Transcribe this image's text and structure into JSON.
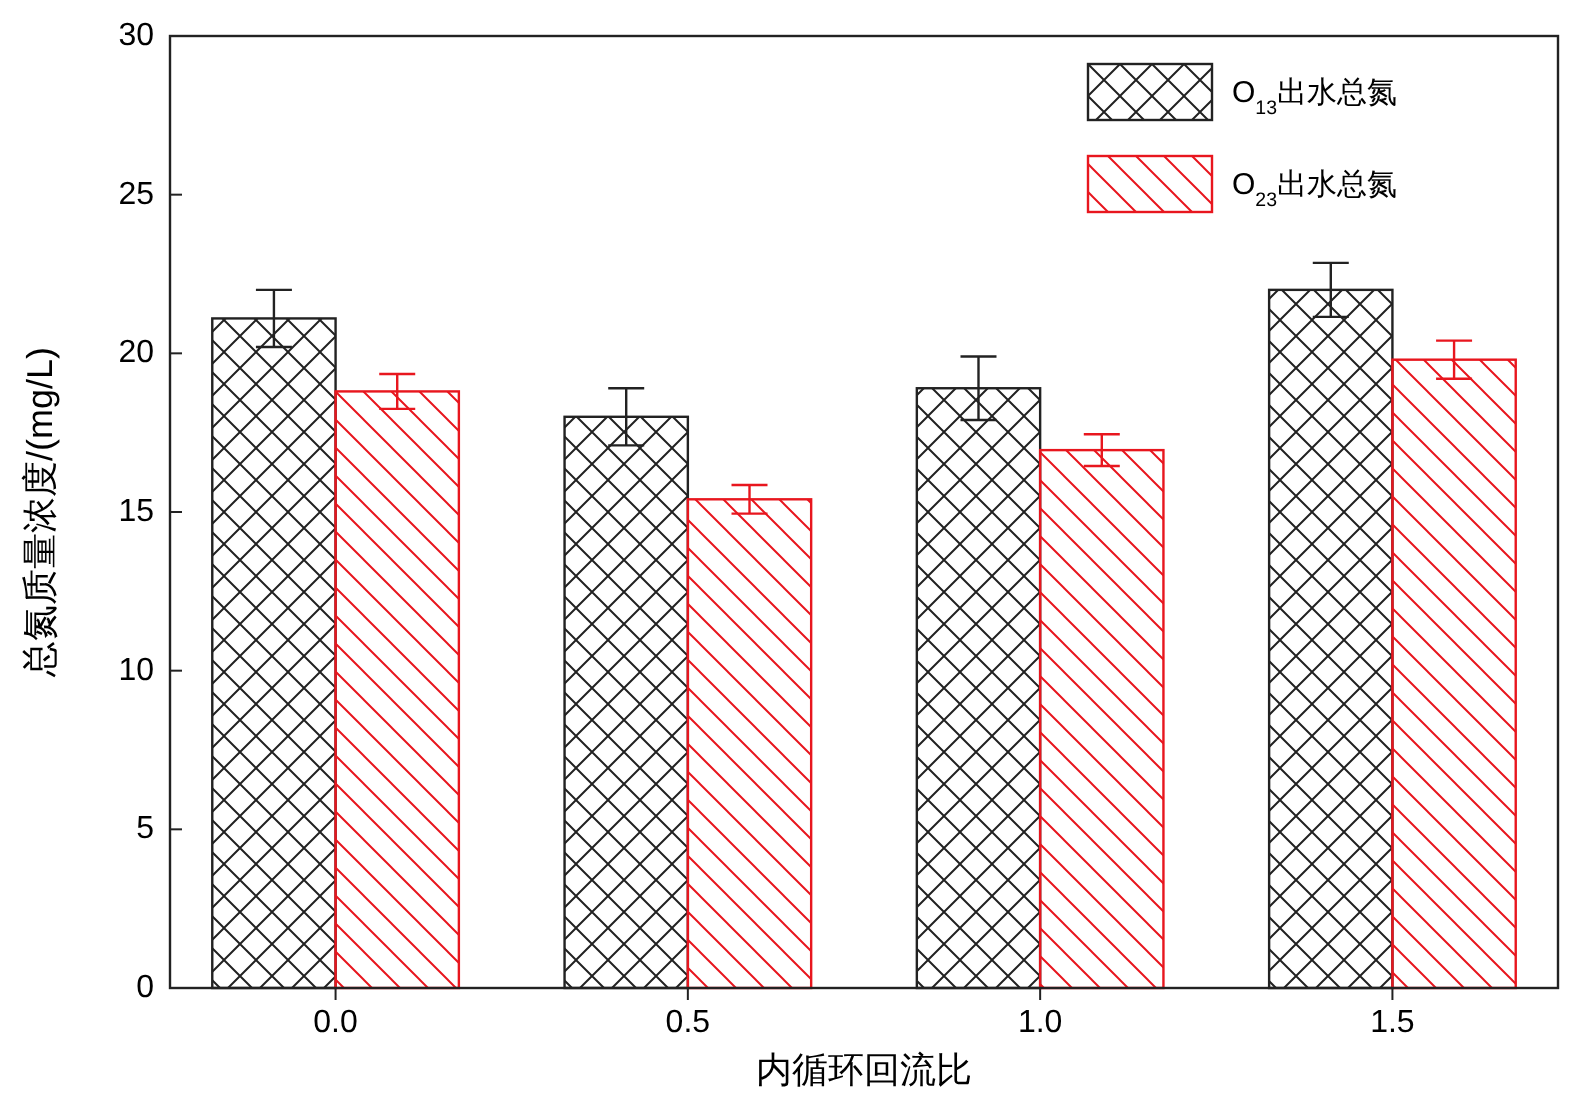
{
  "chart_data": {
    "type": "bar",
    "xlabel": "内循环回流比",
    "ylabel": "总氮质量浓度/(mg/L)",
    "categories": [
      "0.0",
      "0.5",
      "1.0",
      "1.5"
    ],
    "series": [
      {
        "name": "O$_{13}$出水总氮",
        "color": "#222222",
        "values": [
          21.1,
          18.0,
          18.9,
          22.0
        ],
        "errors": [
          0.9,
          0.9,
          1.0,
          0.85
        ]
      },
      {
        "name": "O$_{23}$出水总氮",
        "color": "#e8161e",
        "values": [
          18.8,
          15.4,
          16.95,
          19.8
        ],
        "errors": [
          0.55,
          0.45,
          0.5,
          0.6
        ]
      }
    ],
    "ylim": [
      0,
      30
    ],
    "yticks": [
      0,
      5,
      10,
      15,
      20,
      25,
      30
    ],
    "grid": false,
    "legend": "top right"
  }
}
